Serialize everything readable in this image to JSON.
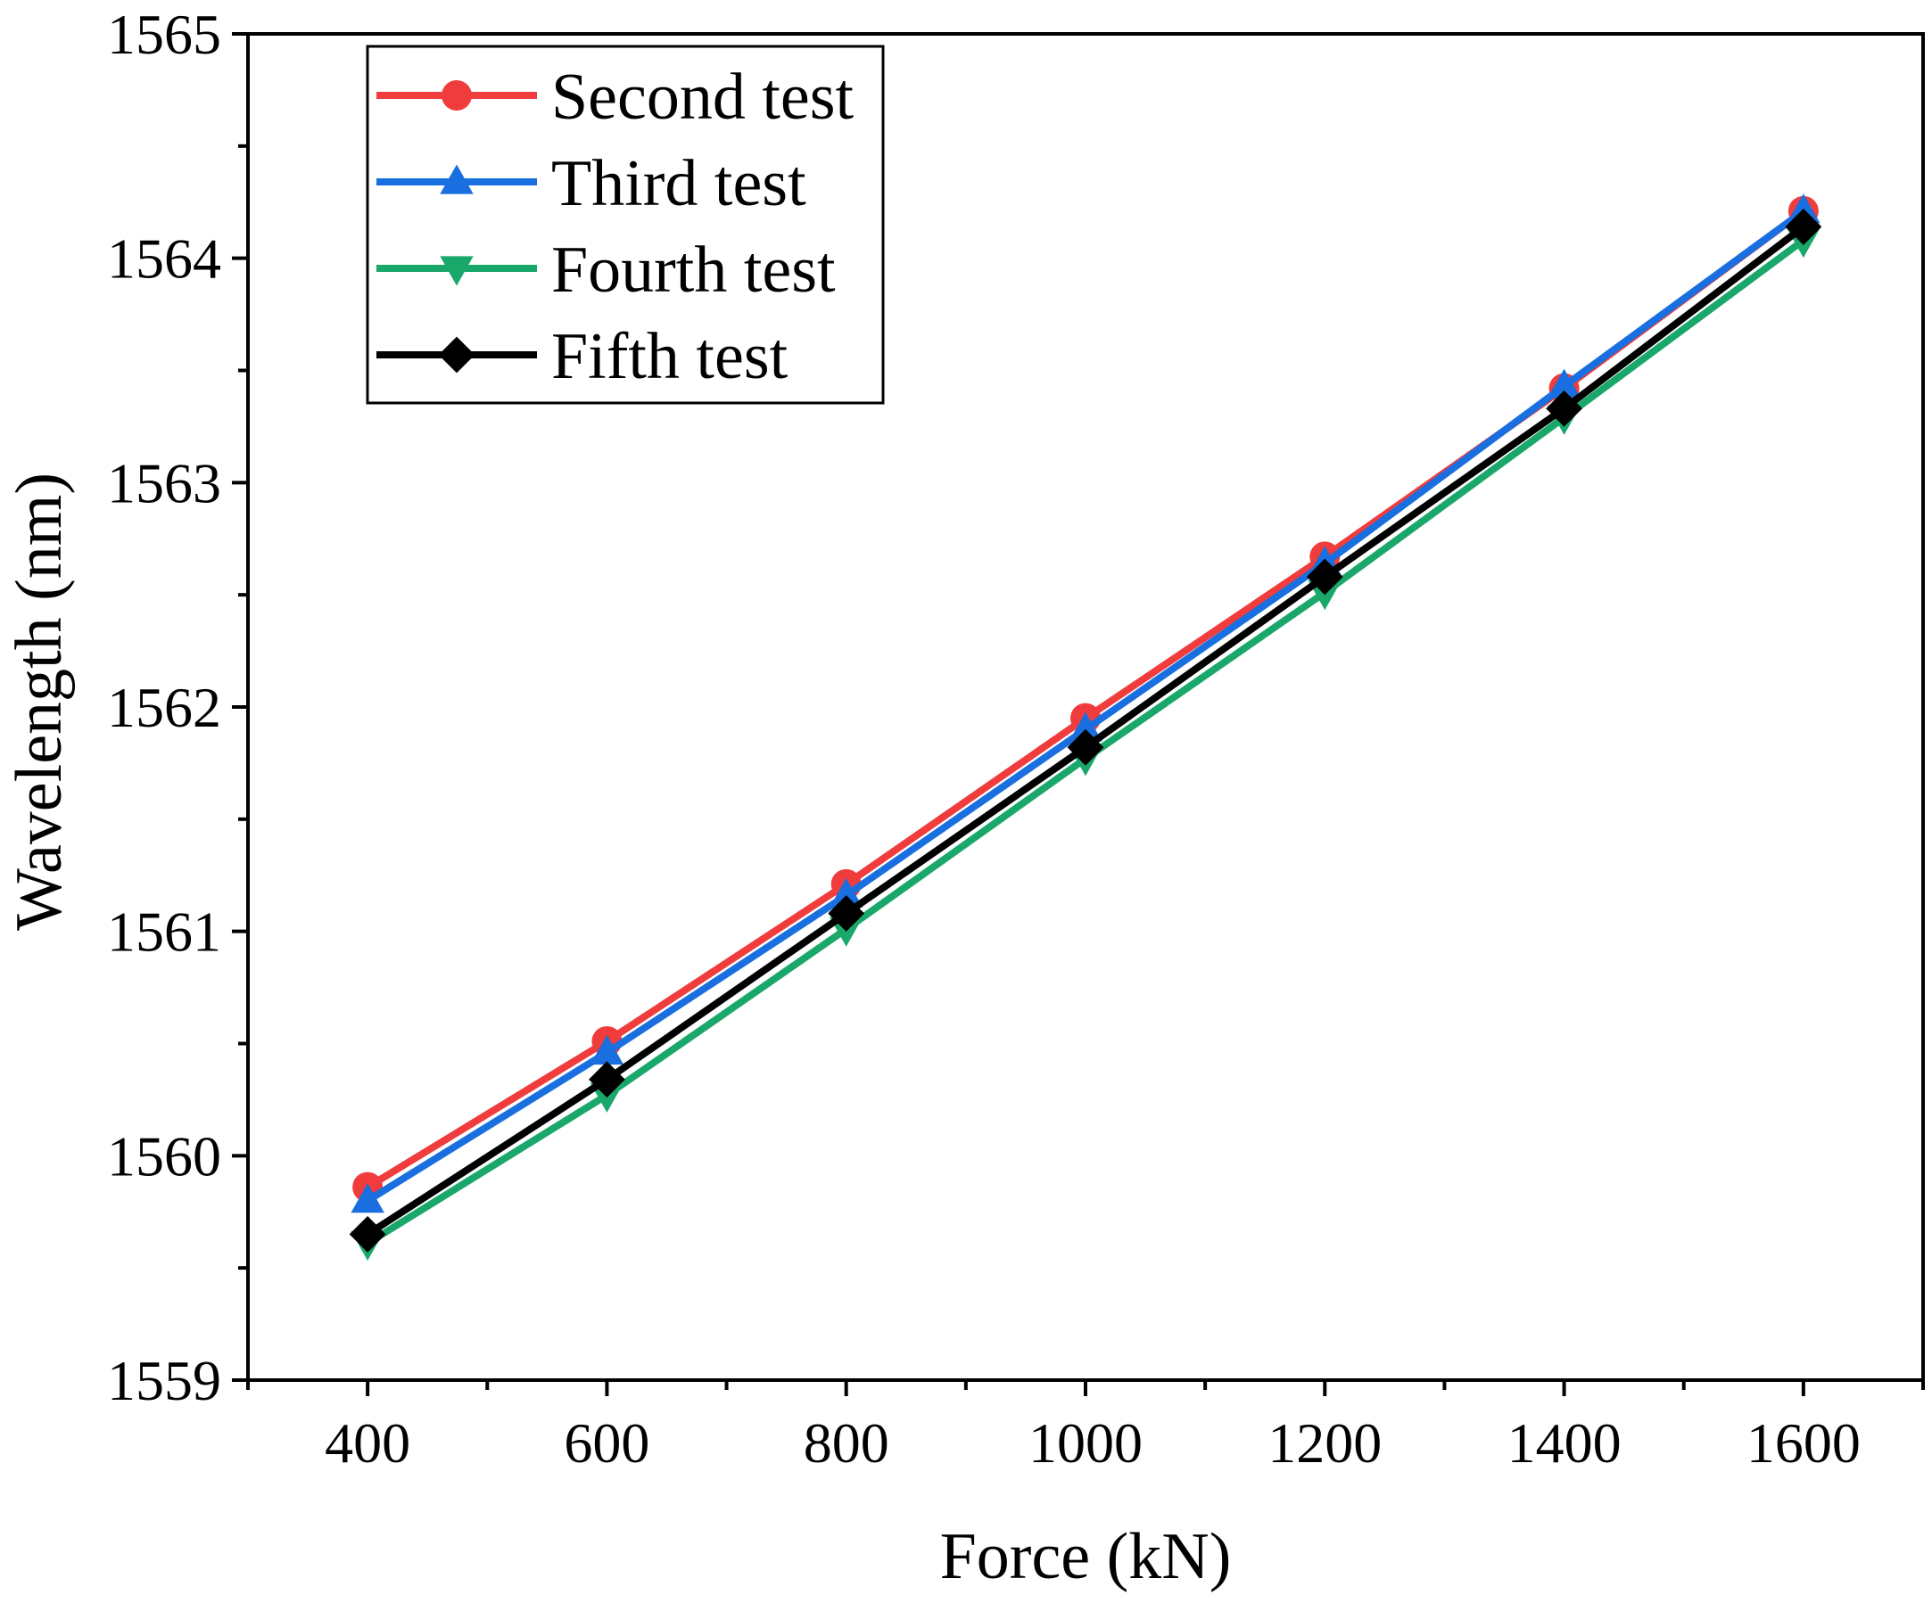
{
  "chart_data": {
    "type": "line",
    "title": "",
    "xlabel": "Force (kN)",
    "ylabel": "Wavelength (nm)",
    "xlim": [
      300,
      1700
    ],
    "ylim": [
      1559,
      1565
    ],
    "xticks": [
      400,
      600,
      800,
      1000,
      1200,
      1400,
      1600
    ],
    "yticks": [
      1559,
      1560,
      1561,
      1562,
      1563,
      1564,
      1565
    ],
    "legend_position": "top-left",
    "grid": false,
    "x": [
      400,
      600,
      800,
      1000,
      1200,
      1400,
      1600
    ],
    "series": [
      {
        "name": "Second test",
        "color": "#f03c3c",
        "marker": "circle",
        "values": [
          1559.86,
          1560.51,
          1561.21,
          1561.95,
          1562.67,
          1563.42,
          1564.21
        ]
      },
      {
        "name": "Third test",
        "color": "#1a6fe0",
        "marker": "triangle-up",
        "values": [
          1559.8,
          1560.46,
          1561.16,
          1561.9,
          1562.64,
          1563.43,
          1564.21
        ]
      },
      {
        "name": "Fourth test",
        "color": "#1aa86a",
        "marker": "triangle-down",
        "values": [
          1559.61,
          1560.27,
          1561.01,
          1561.77,
          1562.51,
          1563.29,
          1564.08
        ]
      },
      {
        "name": "Fifth test",
        "color": "#000000",
        "marker": "diamond",
        "values": [
          1559.65,
          1560.34,
          1561.08,
          1561.82,
          1562.58,
          1563.33,
          1564.14
        ]
      }
    ]
  }
}
